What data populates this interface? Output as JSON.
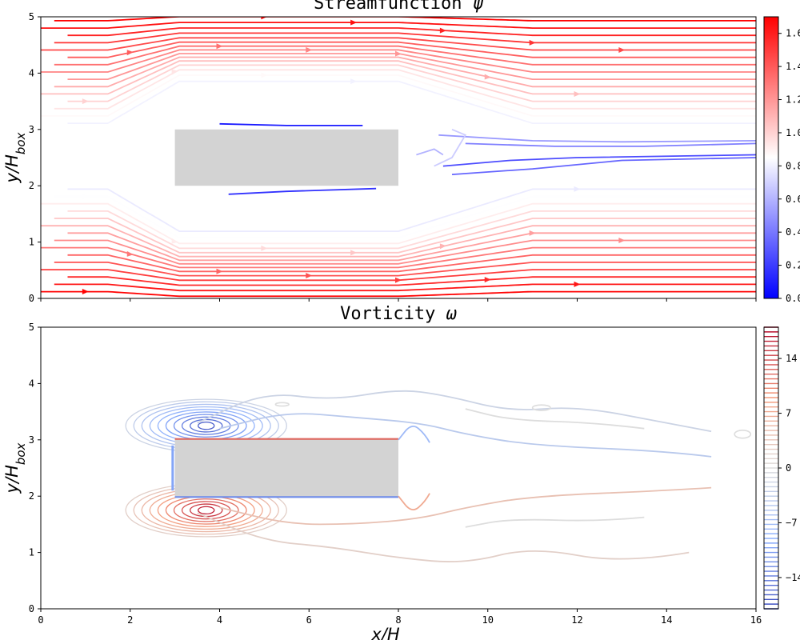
{
  "chart_data": [
    {
      "type": "streamplot",
      "title": "Streamfunction ψ",
      "xlabel": "",
      "ylabel": "y/H_box",
      "xlim": [
        0,
        16
      ],
      "ylim": [
        0,
        5
      ],
      "yticks": [
        "0",
        "1",
        "2",
        "3",
        "4",
        "5"
      ],
      "obstacle": {
        "x0": 3,
        "x1": 8,
        "y0": 2,
        "y1": 3
      },
      "colormap": "bwr",
      "colorbar": {
        "ticks": [
          "0.0",
          "0.2",
          "0.4",
          "0.6",
          "0.8",
          "1.0",
          "1.2",
          "1.4",
          "1.6"
        ],
        "range": [
          0.0,
          1.7
        ]
      }
    },
    {
      "type": "contour",
      "title": "Vorticity ω",
      "xlabel": "x/H",
      "ylabel": "y/H_box",
      "xlim": [
        0,
        16
      ],
      "ylim": [
        0,
        5
      ],
      "xticks": [
        "0",
        "2",
        "4",
        "6",
        "8",
        "10",
        "12",
        "14",
        "16"
      ],
      "yticks": [
        "0",
        "1",
        "2",
        "3",
        "4",
        "5"
      ],
      "obstacle": {
        "x0": 3,
        "x1": 8,
        "y0": 2,
        "y1": 3
      },
      "colormap": "coolwarm",
      "colorbar": {
        "ticks": [
          "−14",
          "−7",
          "0",
          "7",
          "14"
        ],
        "range": [
          -18,
          18
        ]
      }
    }
  ]
}
